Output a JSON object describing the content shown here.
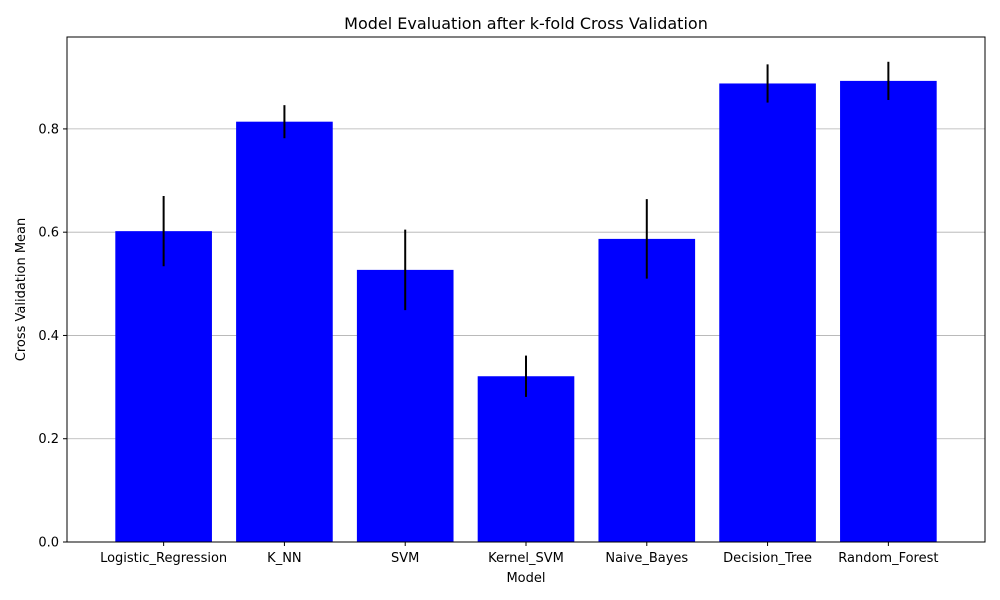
{
  "chart_data": {
    "type": "bar",
    "title": "Model Evaluation after k-fold Cross Validation",
    "xlabel": "Model",
    "ylabel": "Cross Validation Mean",
    "categories": [
      "Logistic_Regression",
      "K_NN",
      "SVM",
      "Kernel_SVM",
      "Naive_Bayes",
      "Decision_Tree",
      "Random_Forest"
    ],
    "values": [
      0.602,
      0.814,
      0.527,
      0.321,
      0.587,
      0.888,
      0.893
    ],
    "errors": [
      0.068,
      0.032,
      0.078,
      0.04,
      0.077,
      0.037,
      0.037
    ],
    "ylim": [
      0,
      0.978
    ],
    "yticks": [
      0.0,
      0.2,
      0.4,
      0.6,
      0.8
    ],
    "ytick_labels": [
      "0.0",
      "0.2",
      "0.4",
      "0.6",
      "0.8"
    ],
    "grid": "y-axis",
    "bar_color": "#0000ff",
    "error_color": "#000000",
    "grid_color": "#b0b0b0"
  }
}
